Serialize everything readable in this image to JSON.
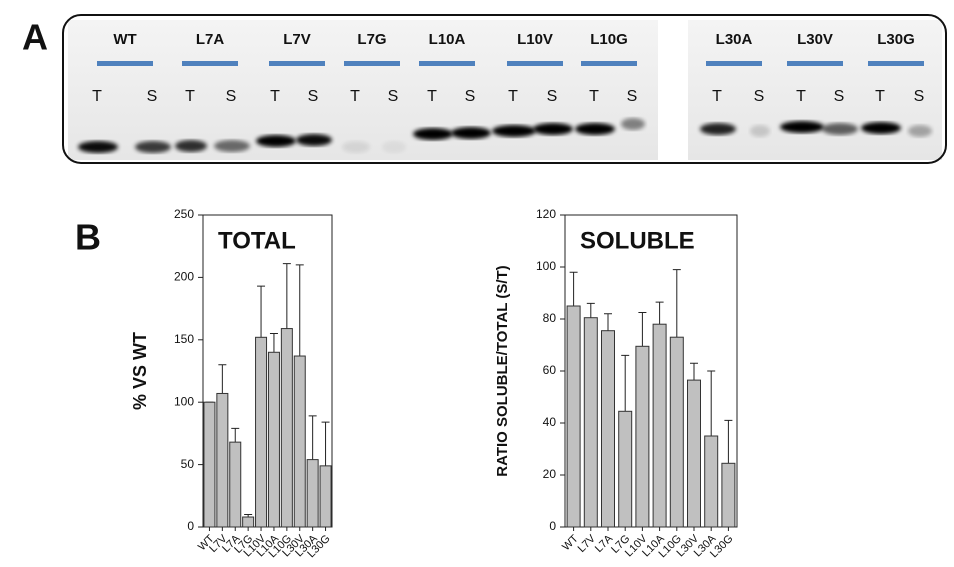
{
  "panel_a": {
    "label": "A",
    "lanes": [
      {
        "label": "WT",
        "letters": [
          "T",
          "S"
        ]
      },
      {
        "label": "L7A",
        "letters": [
          "T",
          "S"
        ]
      },
      {
        "label": "L7V",
        "letters": [
          "T",
          "S"
        ]
      },
      {
        "label": "L7G",
        "letters": [
          "T",
          "S"
        ]
      },
      {
        "label": "L10A",
        "letters": [
          "T",
          "S"
        ]
      },
      {
        "label": "L10V",
        "letters": [
          "T",
          "S"
        ]
      },
      {
        "label": "L10G",
        "letters": [
          "T",
          "S"
        ]
      },
      {
        "label": "L30A",
        "letters": [
          "T",
          "S"
        ]
      },
      {
        "label": "L30V",
        "letters": [
          "T",
          "S"
        ]
      },
      {
        "label": "L30G",
        "letters": [
          "T",
          "S"
        ]
      }
    ]
  },
  "panel_b": {
    "label": "B"
  },
  "chart_data": [
    {
      "type": "bar",
      "title": "TOTAL",
      "y_label": "% VS WT",
      "categories": [
        "WT",
        "L7V",
        "L7A",
        "L7G",
        "L10V",
        "L10A",
        "L10G",
        "L30V",
        "L30A",
        "L30G"
      ],
      "values": [
        100,
        107,
        68,
        8,
        152,
        140,
        159,
        137,
        54,
        49
      ],
      "errors": [
        0,
        23,
        11,
        2,
        41,
        15,
        52,
        73,
        35,
        35
      ],
      "color": "#c0c0c0",
      "ylim": [
        0,
        250
      ],
      "yticks": [
        0,
        50,
        100,
        150,
        200,
        250
      ]
    },
    {
      "type": "bar",
      "title": "SOLUBLE",
      "y_label": "RATIO SOLUBLE/TOTAL (S/T)",
      "categories": [
        "WT",
        "L7V",
        "L7A",
        "L7G",
        "L10V",
        "L10A",
        "L10G",
        "L30V",
        "L30A",
        "L30G"
      ],
      "values": [
        85,
        80.5,
        75.5,
        44.5,
        69.5,
        78,
        73,
        56.5,
        35,
        24.5
      ],
      "errors": [
        13,
        5.5,
        6.5,
        21.5,
        13,
        8.5,
        26,
        6.5,
        25,
        16.5
      ],
      "color": "#c0c0c0",
      "ylim": [
        0,
        120
      ],
      "yticks": [
        0,
        20,
        40,
        60,
        80,
        100,
        120
      ]
    }
  ]
}
